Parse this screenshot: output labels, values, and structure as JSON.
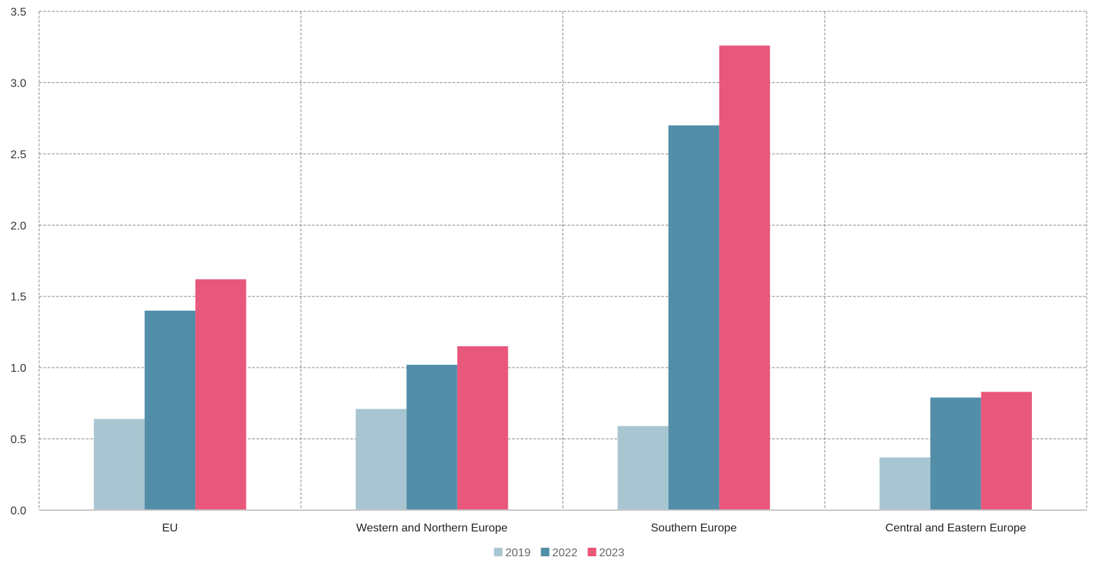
{
  "chart_data": {
    "type": "bar",
    "categories": [
      "EU",
      "Western and Northern Europe",
      "Southern Europe",
      "Central and Eastern Europe"
    ],
    "series": [
      {
        "name": "2019",
        "values": [
          0.64,
          0.71,
          0.59,
          0.37
        ],
        "color": "#a8c6d1"
      },
      {
        "name": "2022",
        "values": [
          1.4,
          1.02,
          2.7,
          0.79
        ],
        "color": "#528ea8"
      },
      {
        "name": "2023",
        "values": [
          1.62,
          1.15,
          3.26,
          0.83
        ],
        "color": "#ea577c"
      }
    ],
    "ylim": [
      0,
      3.5
    ],
    "yticks": [
      "0.0",
      "0.5",
      "1.0",
      "1.5",
      "2.0",
      "2.5",
      "3.0",
      "3.5"
    ],
    "grid": true,
    "legend_position": "bottom-center",
    "title": "",
    "xlabel": "",
    "ylabel": ""
  }
}
